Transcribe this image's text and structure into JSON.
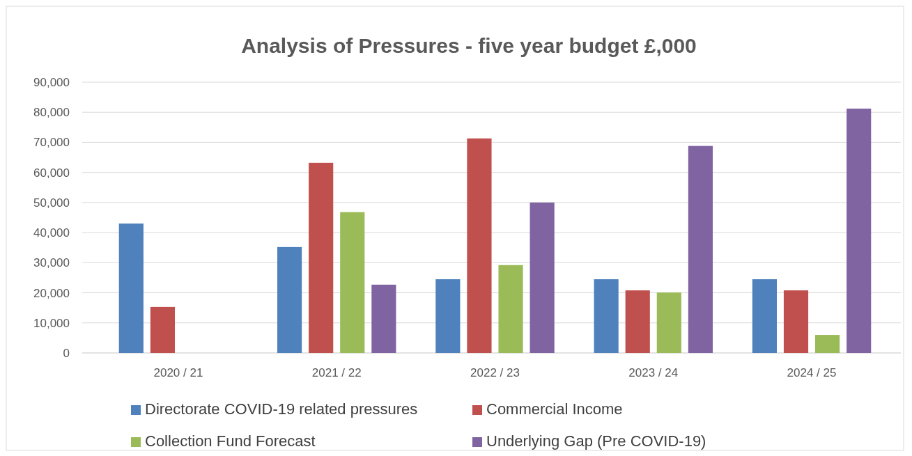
{
  "chart_data": {
    "type": "bar",
    "title": "Analysis of Pressures - five year budget £,000",
    "categories": [
      "2020 / 21",
      "2021 / 22",
      "2022 / 23",
      "2023 / 24",
      "2024 / 25"
    ],
    "series": [
      {
        "name": "Directorate COVID-19 related pressures",
        "color": "#4f81bd",
        "values": [
          43000,
          35200,
          24500,
          24500,
          24500
        ]
      },
      {
        "name": "Commercial Income",
        "color": "#c0504d",
        "values": [
          15300,
          63200,
          71300,
          20800,
          20800
        ]
      },
      {
        "name": "Collection Fund Forecast",
        "color": "#9bbb59",
        "values": [
          null,
          46800,
          29200,
          20100,
          6000
        ]
      },
      {
        "name": "Underlying Gap (Pre COVID-19)",
        "color": "#8064a2",
        "values": [
          null,
          22700,
          50000,
          68800,
          81200
        ]
      }
    ],
    "ylim": [
      0,
      90000
    ],
    "yticks": [
      0,
      {
        "value": 10000,
        "label": "10,000"
      },
      {
        "value": 20000,
        "label": "20,000"
      },
      {
        "value": 30000,
        "label": "30,000"
      },
      {
        "value": 40000,
        "label": "40,000"
      },
      {
        "value": 50000,
        "label": "50,000"
      },
      {
        "value": 60000,
        "label": "60,000"
      },
      {
        "value": 70000,
        "label": "70,000"
      },
      {
        "value": 80000,
        "label": "80,000"
      },
      {
        "value": 90000,
        "label": "90,000"
      }
    ],
    "grid": "y",
    "legend": "bottom"
  }
}
